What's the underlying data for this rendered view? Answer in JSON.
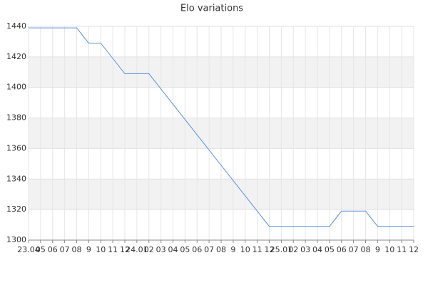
{
  "chart_data": {
    "type": "line",
    "title": "Elo variations",
    "categories": [
      "23.04",
      "05",
      "06",
      "07",
      "08",
      "9",
      "10",
      "11",
      "12",
      "24.01",
      "02",
      "03",
      "04",
      "05",
      "06",
      "07",
      "08",
      "9",
      "10",
      "11",
      "12",
      "25.01",
      "02",
      "03",
      "04",
      "05",
      "06",
      "07",
      "08",
      "9",
      "10",
      "11",
      "12"
    ],
    "values": [
      1439,
      1439,
      1439,
      1439,
      1439,
      1429,
      1429,
      1419,
      1409,
      1409,
      1409,
      1399,
      1389,
      1379,
      1369,
      1359,
      1349,
      1339,
      1329,
      1319,
      1309,
      1309,
      1309,
      1309,
      1309,
      1309,
      1319,
      1319,
      1319,
      1309,
      1309,
      1309,
      1309
    ],
    "color": "#5b8fdb",
    "ylim": [
      1300,
      1440
    ],
    "yticks": [
      1300,
      1320,
      1340,
      1360,
      1380,
      1400,
      1420,
      1440
    ],
    "grid": true,
    "bands": true
  }
}
